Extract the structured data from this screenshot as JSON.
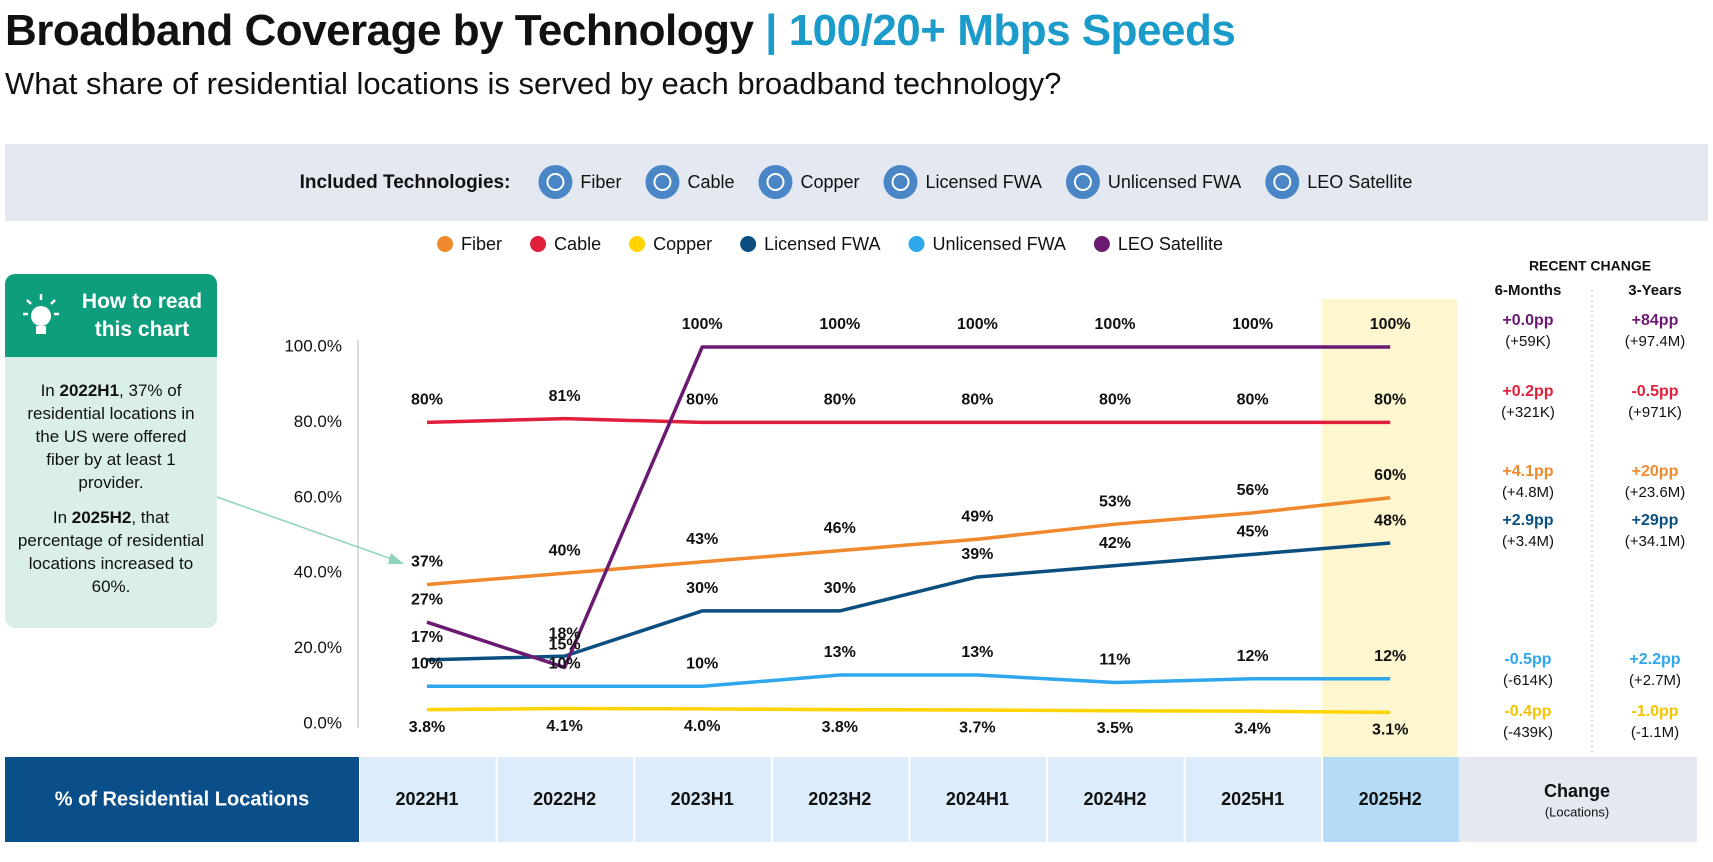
{
  "header": {
    "title": "Broadband Coverage by Technology",
    "title_highlight": "| 100/20+ Mbps Speeds",
    "subtitle": "What share of residential locations is served by each broadband technology?"
  },
  "technologies": {
    "label": "Included Technologies:",
    "items": [
      "Fiber",
      "Cable",
      "Copper",
      "Licensed FWA",
      "Unlicensed FWA",
      "LEO Satellite"
    ]
  },
  "how_to": {
    "title": "How to read this chart",
    "paragraphs": [
      [
        "In ",
        "2022H1",
        ", 37% of residential locations in the US were offered fiber by at least 1 provider."
      ],
      [
        "In ",
        "2025H2",
        ", that percentage of residential locations increased to 60%."
      ]
    ]
  },
  "chart_data": {
    "type": "line",
    "legend": "top",
    "grid": false,
    "row_header": "% of Residential Locations",
    "categories": [
      "2022H1",
      "2022H2",
      "2023H1",
      "2023H2",
      "2024H1",
      "2024H2",
      "2025H1",
      "2025H2"
    ],
    "highlight_category": "2025H2",
    "ylim": [
      0,
      100
    ],
    "yticks": [
      {
        "value": 0,
        "label": "0.0%"
      },
      {
        "value": 20,
        "label": "20.0%"
      },
      {
        "value": 40,
        "label": "40.0%"
      },
      {
        "value": 60,
        "label": "60.0%"
      },
      {
        "value": 80,
        "label": "80.0%"
      },
      {
        "value": 100,
        "label": "100.0%"
      }
    ],
    "recent_change": {
      "title": "RECENT CHANGE",
      "col_6m": "6-Months",
      "col_3y": "3-Years",
      "footer": "Change",
      "footer_sub": "(Locations)"
    },
    "series": [
      {
        "name": "Fiber",
        "color": "#f0882d",
        "values": [
          37,
          40,
          43,
          46,
          49,
          53,
          56,
          60
        ],
        "value_labels": [
          "37%",
          "40%",
          "43%",
          "46%",
          "49%",
          "53%",
          "56%",
          "60%"
        ],
        "change_6m": "+4.1pp",
        "change_6m_locations": "(+4.8M)",
        "change_3y": "+20pp",
        "change_3y_locations": "(+23.6M)"
      },
      {
        "name": "Cable",
        "color": "#e0203a",
        "values": [
          80,
          81,
          80,
          80,
          80,
          80,
          80,
          80
        ],
        "value_labels": [
          "80%",
          "81%",
          "80%",
          "80%",
          "80%",
          "80%",
          "80%",
          "80%"
        ],
        "change_6m": "+0.2pp",
        "change_6m_locations": "(+321K)",
        "change_3y": "-0.5pp",
        "change_3y_locations": "(+971K)"
      },
      {
        "name": "Copper",
        "color": "#ffd400",
        "values": [
          3.8,
          4.1,
          4.0,
          3.8,
          3.7,
          3.5,
          3.4,
          3.1
        ],
        "value_labels": [
          "3.8%",
          "4.1%",
          "4.0%",
          "3.8%",
          "3.7%",
          "3.5%",
          "3.4%",
          "3.1%"
        ],
        "change_6m": "-0.4pp",
        "change_6m_locations": "(-439K)",
        "change_3y": "-1.0pp",
        "change_3y_locations": "(-1.1M)"
      },
      {
        "name": "Licensed FWA",
        "color": "#0b4f80",
        "values": [
          17,
          18,
          30,
          30,
          39,
          42,
          45,
          48
        ],
        "value_labels": [
          "17%",
          "18%",
          "30%",
          "30%",
          "39%",
          "42%",
          "45%",
          "48%"
        ],
        "change_6m": "+2.9pp",
        "change_6m_locations": "(+3.4M)",
        "change_3y": "+29pp",
        "change_3y_locations": "(+34.1M)"
      },
      {
        "name": "Unlicensed FWA",
        "color": "#2ea7ec",
        "values": [
          10,
          10,
          10,
          13,
          13,
          11,
          12,
          12
        ],
        "value_labels": [
          "10%",
          "10%",
          "10%",
          "13%",
          "13%",
          "11%",
          "12%",
          "12%"
        ],
        "change_6m": "-0.5pp",
        "change_6m_locations": "(-614K)",
        "change_3y": "+2.2pp",
        "change_3y_locations": "(+2.7M)"
      },
      {
        "name": "LEO Satellite",
        "color": "#6b1a72",
        "values": [
          27,
          15,
          100,
          100,
          100,
          100,
          100,
          100
        ],
        "value_labels": [
          "27%",
          "15%",
          "100%",
          "100%",
          "100%",
          "100%",
          "100%",
          "100%"
        ],
        "change_6m": "+0.0pp",
        "change_6m_locations": "(+59K)",
        "change_3y": "+84pp",
        "change_3y_locations": "(+97.4M)"
      }
    ]
  }
}
